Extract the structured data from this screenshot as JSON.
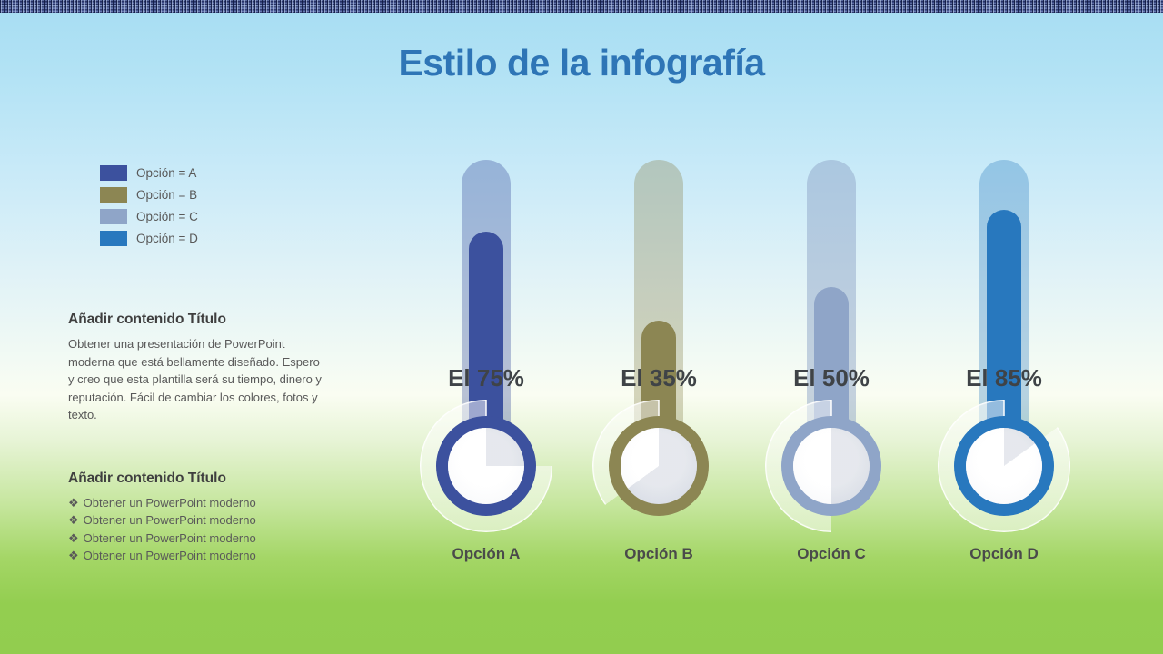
{
  "title": "Estilo de la infografía",
  "title_color": "#2e75b6",
  "legend": {
    "items": [
      {
        "label": "Opción = A",
        "color": "#3c519e"
      },
      {
        "label": "Opción = B",
        "color": "#8c8653"
      },
      {
        "label": "Opción = C",
        "color": "#8fa5c8"
      },
      {
        "label": "Opción = D",
        "color": "#2878be"
      }
    ]
  },
  "sections": [
    {
      "heading": "Añadir contenido Título",
      "body": "Obtener una presentación de PowerPoint moderna que está bellamente diseñado. Espero y creo que esta plantilla será su tiempo, dinero y reputación. Fácil de cambiar los colores, fotos y texto."
    },
    {
      "heading": "Añadir contenido Título",
      "bullet_glyph": "❖",
      "bullets": [
        "Obtener un PowerPoint moderno",
        "Obtener un PowerPoint moderno",
        "Obtener un PowerPoint moderno",
        "Obtener un PowerPoint moderno"
      ]
    }
  ],
  "chart_data": {
    "type": "bar",
    "subtype": "thermometer-gauge",
    "categories": [
      "Opción A",
      "Opción B",
      "Opción C",
      "Opción D"
    ],
    "values": [
      75,
      35,
      50,
      85
    ],
    "value_labels": [
      "El 75%",
      "El 35%",
      "El 50%",
      "El 85%"
    ],
    "colors": [
      "#3c519e",
      "#8c8653",
      "#8fa5c8",
      "#2878be"
    ],
    "tube_colors": [
      "rgba(60,81,158,0.35)",
      "rgba(140,134,83,0.35)",
      "rgba(143,165,200,0.5)",
      "rgba(40,120,190,0.32)"
    ],
    "ylim": [
      0,
      100
    ],
    "grid": false,
    "legend_position": "upper-left"
  }
}
